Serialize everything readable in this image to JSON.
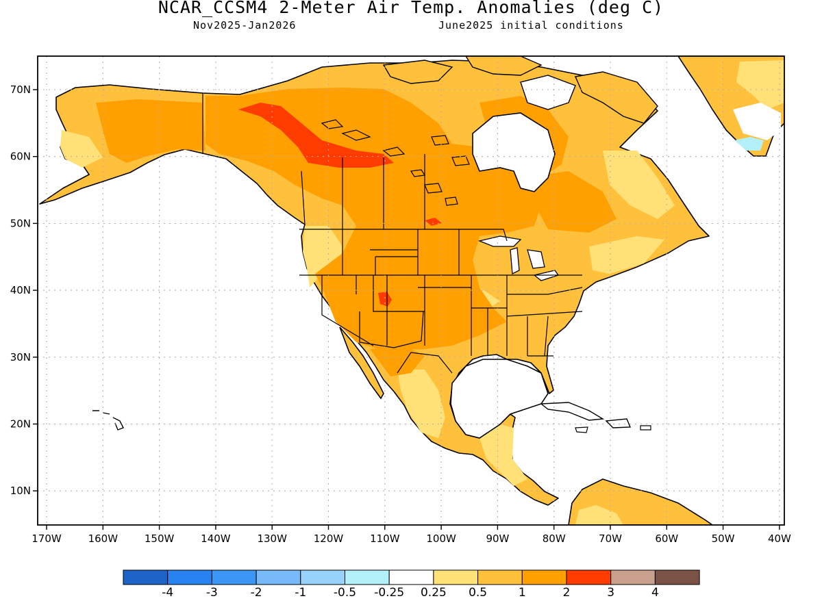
{
  "title": "NCAR_CCSM4 2-Meter Air Temp. Anomalies (deg C)",
  "subtitle_left": "Nov2025-Jan2026",
  "subtitle_right": "June2025 initial conditions",
  "lat_labels": [
    "70N",
    "60N",
    "50N",
    "40N",
    "30N",
    "20N",
    "10N"
  ],
  "lon_labels": [
    "170W",
    "160W",
    "150W",
    "140W",
    "130W",
    "120W",
    "110W",
    "100W",
    "90W",
    "80W",
    "70W",
    "60W",
    "50W",
    "40W"
  ],
  "colorbar": {
    "labels": [
      "-4",
      "-3",
      "-2",
      "-1",
      "-0.5",
      "-0.25",
      "0.25",
      "0.5",
      "1",
      "2",
      "3",
      "4"
    ],
    "colors": [
      "#1e64c8",
      "#2882f0",
      "#3c96f5",
      "#78b9fa",
      "#96d2fa",
      "#b4f0fa",
      "#ffffff",
      "#ffe178",
      "#ffc03c",
      "#ffa000",
      "#ff3c00",
      "#c8a08c",
      "#7b5346"
    ]
  },
  "palette": {
    "land_light": "#ffe178",
    "land_mid": "#ffc03c",
    "land_strong": "#ffa000",
    "land_hot": "#ff3c00",
    "cool": "#b4f0fa",
    "grid": "#b0b0b0",
    "coast": "#000000"
  }
}
